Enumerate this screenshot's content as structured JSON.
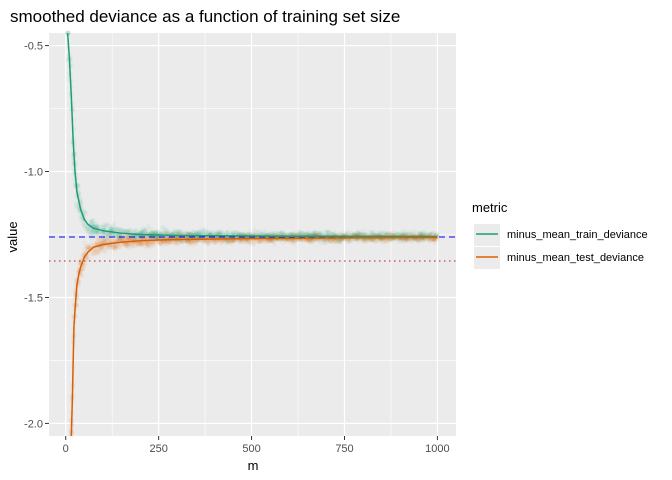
{
  "chart_data": {
    "type": "scatter",
    "title": "smoothed deviance as a function of training set size",
    "xlabel": "m",
    "ylabel": "value",
    "xlim": [
      -45,
      1050
    ],
    "ylim": [
      -2.05,
      -0.45
    ],
    "x_ticks": [
      0,
      250,
      500,
      750,
      1000
    ],
    "x_tick_labels": [
      "0",
      "250",
      "500",
      "750",
      "1000"
    ],
    "y_ticks": [
      -2.0,
      -1.5,
      -1.0,
      -0.5
    ],
    "y_tick_labels": [
      "-2.0",
      "-1.5",
      "-1.0",
      "-0.5"
    ],
    "grid": true,
    "legend": {
      "title": "metric",
      "position": "right"
    },
    "series": [
      {
        "name": "minus_mean_train_deviance",
        "color": "#1b9e77",
        "x": [
          5,
          10,
          15,
          20,
          25,
          30,
          40,
          50,
          60,
          75,
          100,
          125,
          150,
          200,
          250,
          300,
          400,
          500,
          600,
          700,
          800,
          900,
          1000
        ],
        "y": [
          -0.45,
          -0.55,
          -0.7,
          -0.88,
          -1.0,
          -1.08,
          -1.15,
          -1.19,
          -1.21,
          -1.225,
          -1.235,
          -1.24,
          -1.245,
          -1.25,
          -1.252,
          -1.254,
          -1.255,
          -1.256,
          -1.257,
          -1.257,
          -1.258,
          -1.258,
          -1.258
        ]
      },
      {
        "name": "minus_mean_test_deviance",
        "color": "#d95f02",
        "x": [
          15,
          18,
          20,
          22,
          25,
          30,
          35,
          40,
          50,
          60,
          75,
          100,
          125,
          150,
          200,
          250,
          300,
          400,
          500,
          600,
          700,
          800,
          900,
          1000
        ],
        "y": [
          -2.05,
          -1.9,
          -1.75,
          -1.62,
          -1.55,
          -1.45,
          -1.41,
          -1.38,
          -1.34,
          -1.32,
          -1.3,
          -1.29,
          -1.285,
          -1.28,
          -1.275,
          -1.272,
          -1.27,
          -1.268,
          -1.266,
          -1.265,
          -1.264,
          -1.263,
          -1.262,
          -1.262
        ]
      }
    ],
    "reference_lines": [
      {
        "y": -1.26,
        "color": "#0000ff",
        "style": "dashed"
      },
      {
        "y": -1.355,
        "color": "#b2182b",
        "style": "dotted"
      }
    ]
  }
}
